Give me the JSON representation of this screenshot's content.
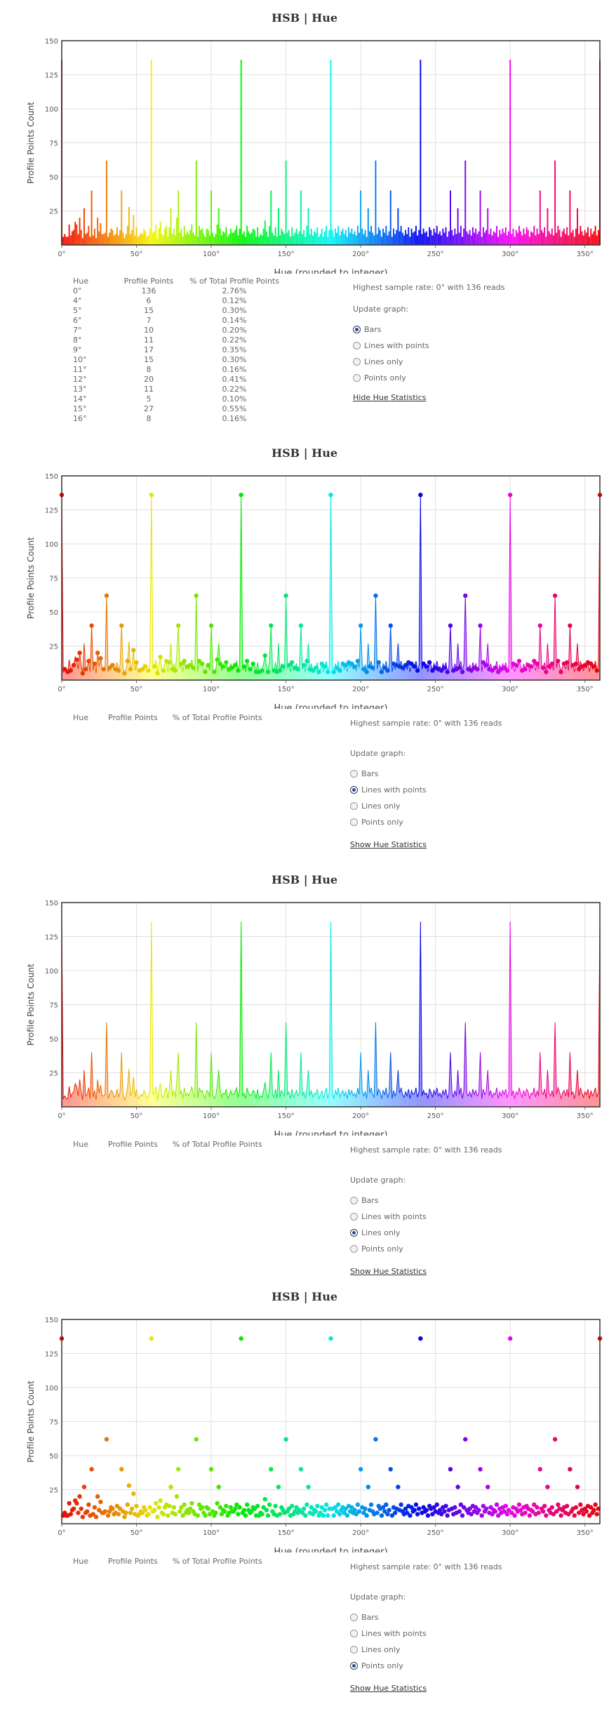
{
  "chart_title": "HSB | Hue",
  "chart_data": [
    {
      "type": "bar",
      "title": "HSB | Hue",
      "xlabel": "Hue (rounded to integer)",
      "ylabel": "Profile Points Count",
      "xlim": [
        0,
        360
      ],
      "ylim": [
        0,
        150
      ],
      "x_ticks": [
        0,
        50,
        100,
        150,
        200,
        250,
        300,
        350
      ],
      "x_tick_labels": [
        "0°",
        "50°",
        "100°",
        "150°",
        "200°",
        "250°",
        "300°",
        "350°"
      ],
      "y_ticks": [
        25,
        50,
        75,
        100,
        125,
        150
      ],
      "grid": true,
      "legend": "none",
      "hue_start": 0,
      "values": [
        136,
        6,
        8,
        6,
        6,
        15,
        7,
        10,
        11,
        17,
        15,
        8,
        20,
        11,
        5,
        27,
        8,
        9,
        14,
        6,
        40,
        7,
        12,
        5,
        20,
        10,
        16,
        8,
        8,
        9,
        62,
        6,
        9,
        12,
        11,
        7,
        8,
        13,
        7,
        11,
        40,
        9,
        5,
        8,
        14,
        28,
        8,
        11,
        22,
        7,
        13,
        6,
        7,
        9,
        8,
        12,
        10,
        6,
        7,
        12,
        136,
        9,
        10,
        15,
        5,
        12,
        17,
        8,
        7,
        12,
        14,
        6,
        13,
        27,
        8,
        12,
        7,
        20,
        40,
        9,
        12,
        6,
        14,
        8,
        10,
        8,
        11,
        15,
        9,
        7,
        62,
        6,
        14,
        11,
        12,
        8,
        6,
        12,
        11,
        7,
        40,
        9,
        6,
        8,
        15,
        27,
        12,
        7,
        10,
        9,
        13,
        6,
        8,
        12,
        9,
        9,
        11,
        14,
        7,
        12,
        136,
        8,
        10,
        6,
        14,
        10,
        8,
        9,
        12,
        11,
        6,
        13,
        6,
        8,
        7,
        12,
        18,
        10,
        6,
        14,
        40,
        9,
        7,
        13,
        6,
        27,
        7,
        12,
        10,
        8,
        62,
        9,
        11,
        6,
        13,
        7,
        9,
        12,
        8,
        10,
        40,
        8,
        11,
        6,
        14,
        27,
        8,
        12,
        7,
        10,
        9,
        13,
        6,
        8,
        12,
        6,
        10,
        14,
        6,
        11,
        136,
        11,
        6,
        12,
        9,
        14,
        7,
        10,
        12,
        8,
        11,
        6,
        13,
        9,
        12,
        8,
        10,
        7,
        14,
        9,
        40,
        12,
        8,
        11,
        6,
        27,
        10,
        14,
        9,
        7,
        62,
        8,
        13,
        11,
        6,
        12,
        9,
        14,
        7,
        10,
        40,
        6,
        12,
        8,
        11,
        27,
        10,
        14,
        9,
        7,
        11,
        8,
        13,
        6,
        12,
        9,
        10,
        14,
        7,
        11,
        136,
        8,
        12,
        9,
        10,
        6,
        13,
        11,
        7,
        12,
        9,
        14,
        8,
        10,
        7,
        12,
        9,
        13,
        6,
        10,
        40,
        11,
        7,
        12,
        8,
        27,
        9,
        14,
        6,
        12,
        62,
        10,
        8,
        11,
        7,
        13,
        9,
        12,
        8,
        10,
        40,
        6,
        13,
        9,
        11,
        27,
        8,
        12,
        7,
        10,
        9,
        14,
        6,
        11,
        8,
        12,
        9,
        13,
        7,
        10,
        136,
        8,
        12,
        6,
        11,
        9,
        14,
        10,
        7,
        12,
        8,
        13,
        11,
        6,
        10,
        9,
        14,
        7,
        12,
        8,
        40,
        11,
        9,
        13,
        6,
        27,
        10,
        8,
        12,
        7,
        62,
        9,
        14,
        11,
        6,
        10,
        12,
        8,
        13,
        7,
        40,
        9,
        11,
        6,
        12,
        27,
        8,
        14,
        10,
        7,
        11,
        9,
        13,
        6,
        12,
        8,
        10,
        14,
        7,
        11,
        136
      ]
    }
  ],
  "stats": {
    "headers": [
      "Hue",
      "Profile Points",
      "% of Total Profile Points"
    ],
    "rows": [
      [
        "0°",
        "136",
        "2.76%"
      ],
      [
        "4°",
        "6",
        "0.12%"
      ],
      [
        "5°",
        "15",
        "0.30%"
      ],
      [
        "6°",
        "7",
        "0.14%"
      ],
      [
        "7°",
        "10",
        "0.20%"
      ],
      [
        "8°",
        "11",
        "0.22%"
      ],
      [
        "9°",
        "17",
        "0.35%"
      ],
      [
        "10°",
        "15",
        "0.30%"
      ],
      [
        "11°",
        "8",
        "0.16%"
      ],
      [
        "12°",
        "20",
        "0.41%"
      ],
      [
        "13°",
        "11",
        "0.22%"
      ],
      [
        "14°",
        "5",
        "0.10%"
      ],
      [
        "15°",
        "27",
        "0.55%"
      ],
      [
        "16°",
        "8",
        "0.16%"
      ]
    ]
  },
  "side": {
    "highest": "Highest sample rate: 0° with 136 reads",
    "update_label": "Update graph:",
    "options": [
      "Bars",
      "Lines with points",
      "Lines only",
      "Points only"
    ],
    "hide_label": "Hide Hue Statistics",
    "show_label": "Show Hue Statistics"
  },
  "sections": [
    {
      "mode": "Bars",
      "selected": 0
    },
    {
      "mode": "Lines with points",
      "selected": 1
    },
    {
      "mode": "Lines only",
      "selected": 2
    },
    {
      "mode": "Points only",
      "selected": 3
    }
  ]
}
